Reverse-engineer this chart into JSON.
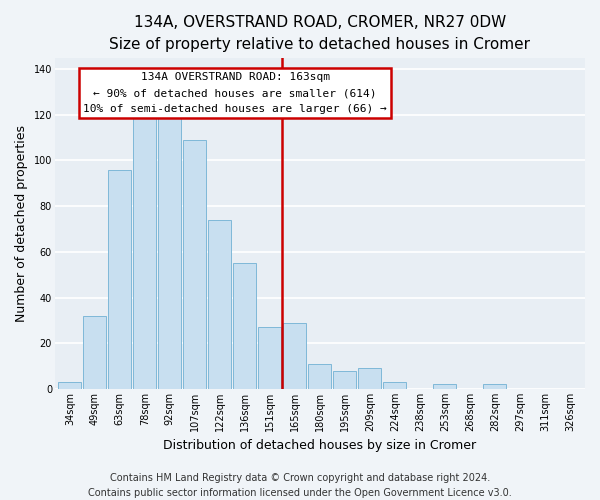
{
  "title": "134A, OVERSTRAND ROAD, CROMER, NR27 0DW",
  "subtitle": "Size of property relative to detached houses in Cromer",
  "xlabel": "Distribution of detached houses by size in Cromer",
  "ylabel": "Number of detached properties",
  "bar_labels": [
    "34sqm",
    "49sqm",
    "63sqm",
    "78sqm",
    "92sqm",
    "107sqm",
    "122sqm",
    "136sqm",
    "151sqm",
    "165sqm",
    "180sqm",
    "195sqm",
    "209sqm",
    "224sqm",
    "238sqm",
    "253sqm",
    "268sqm",
    "282sqm",
    "297sqm",
    "311sqm",
    "326sqm"
  ],
  "bar_values": [
    3,
    32,
    96,
    133,
    133,
    109,
    74,
    55,
    27,
    29,
    11,
    8,
    9,
    3,
    0,
    2,
    0,
    2,
    0,
    0,
    0
  ],
  "bar_color": "#c8dff0",
  "bar_edge_color": "#7fb8d8",
  "marker_color": "#cc0000",
  "annotation_line1": "134A OVERSTRAND ROAD: 163sqm",
  "annotation_line2": "← 90% of detached houses are smaller (614)",
  "annotation_line3": "10% of semi-detached houses are larger (66) →",
  "annotation_box_color": "#ffffff",
  "annotation_box_edge": "#cc0000",
  "ylim": [
    0,
    145
  ],
  "yticks": [
    0,
    20,
    40,
    60,
    80,
    100,
    120,
    140
  ],
  "footer_line1": "Contains HM Land Registry data © Crown copyright and database right 2024.",
  "footer_line2": "Contains public sector information licensed under the Open Government Licence v3.0.",
  "background_color": "#f0f4f8",
  "plot_bg_color": "#e8eef4",
  "grid_color": "#ffffff",
  "title_fontsize": 11,
  "subtitle_fontsize": 9.5,
  "axis_label_fontsize": 9,
  "tick_fontsize": 7,
  "footer_fontsize": 7,
  "annotation_fontsize": 8
}
